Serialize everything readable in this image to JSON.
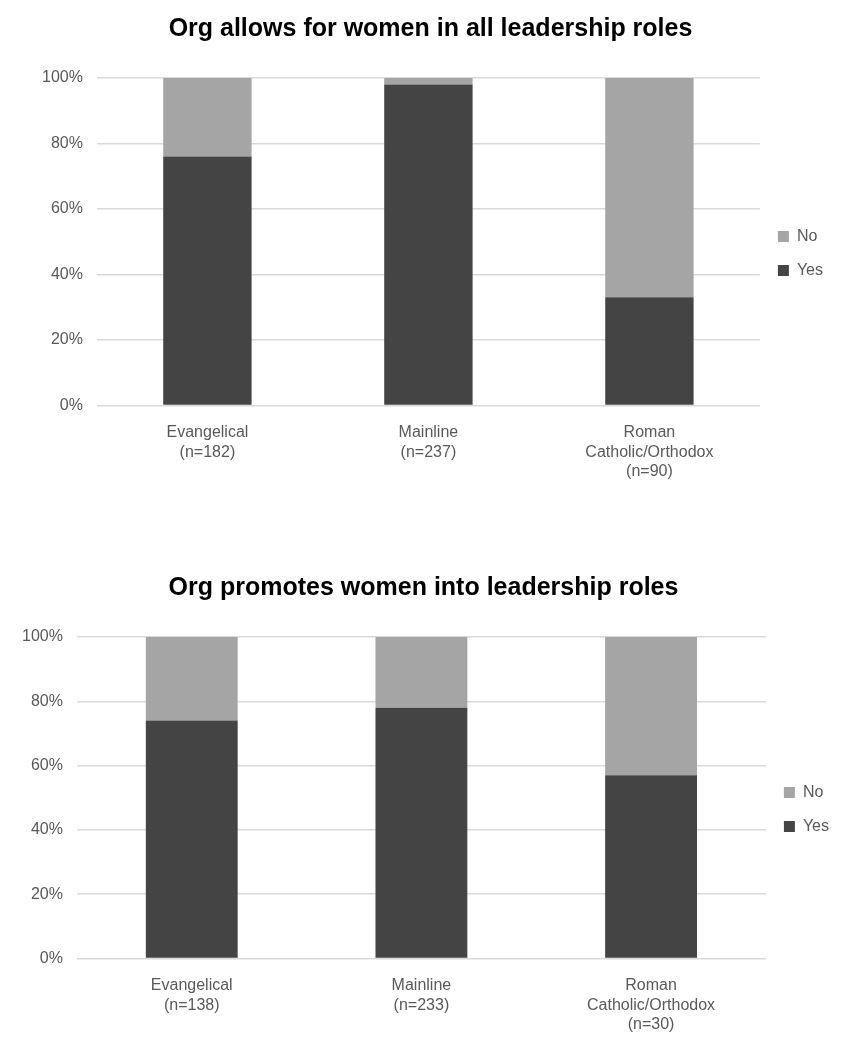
{
  "chart_data": [
    {
      "type": "bar",
      "title": "Org allows for women in all leadership roles",
      "categories": [
        "Evangelical (n=182)",
        "Mainline (n=237)",
        "Roman Catholic/Orthodox (n=90)"
      ],
      "series": [
        {
          "name": "Yes",
          "color": "#444444",
          "values": [
            76,
            98,
            33
          ]
        },
        {
          "name": "No",
          "color": "#a5a5a5",
          "values": [
            24,
            2,
            67
          ]
        }
      ],
      "stacked": true,
      "ylim": [
        0,
        100
      ],
      "yticks": [
        {
          "value": 0,
          "label": "0%"
        },
        {
          "value": 20,
          "label": "20%"
        },
        {
          "value": 40,
          "label": "40%"
        },
        {
          "value": 60,
          "label": "60%"
        },
        {
          "value": 80,
          "label": "80%"
        },
        {
          "value": 100,
          "label": "100%"
        }
      ],
      "grid": "y",
      "legend": "right"
    },
    {
      "type": "bar",
      "title": "Org promotes women into leadership roles",
      "categories": [
        "Evangelical (n=138)",
        "Mainline (n=233)",
        "Roman Catholic/Orthodox (n=30)"
      ],
      "series": [
        {
          "name": "Yes",
          "color": "#444444",
          "values": [
            74,
            78,
            57
          ]
        },
        {
          "name": "No",
          "color": "#a5a5a5",
          "values": [
            26,
            22,
            43
          ]
        }
      ],
      "stacked": true,
      "ylim": [
        0,
        100
      ],
      "yticks": [
        {
          "value": 0,
          "label": "0%"
        },
        {
          "value": 20,
          "label": "20%"
        },
        {
          "value": 40,
          "label": "40%"
        },
        {
          "value": 60,
          "label": "60%"
        },
        {
          "value": 80,
          "label": "80%"
        },
        {
          "value": 100,
          "label": "100%"
        }
      ],
      "grid": "y",
      "legend": "right"
    }
  ]
}
